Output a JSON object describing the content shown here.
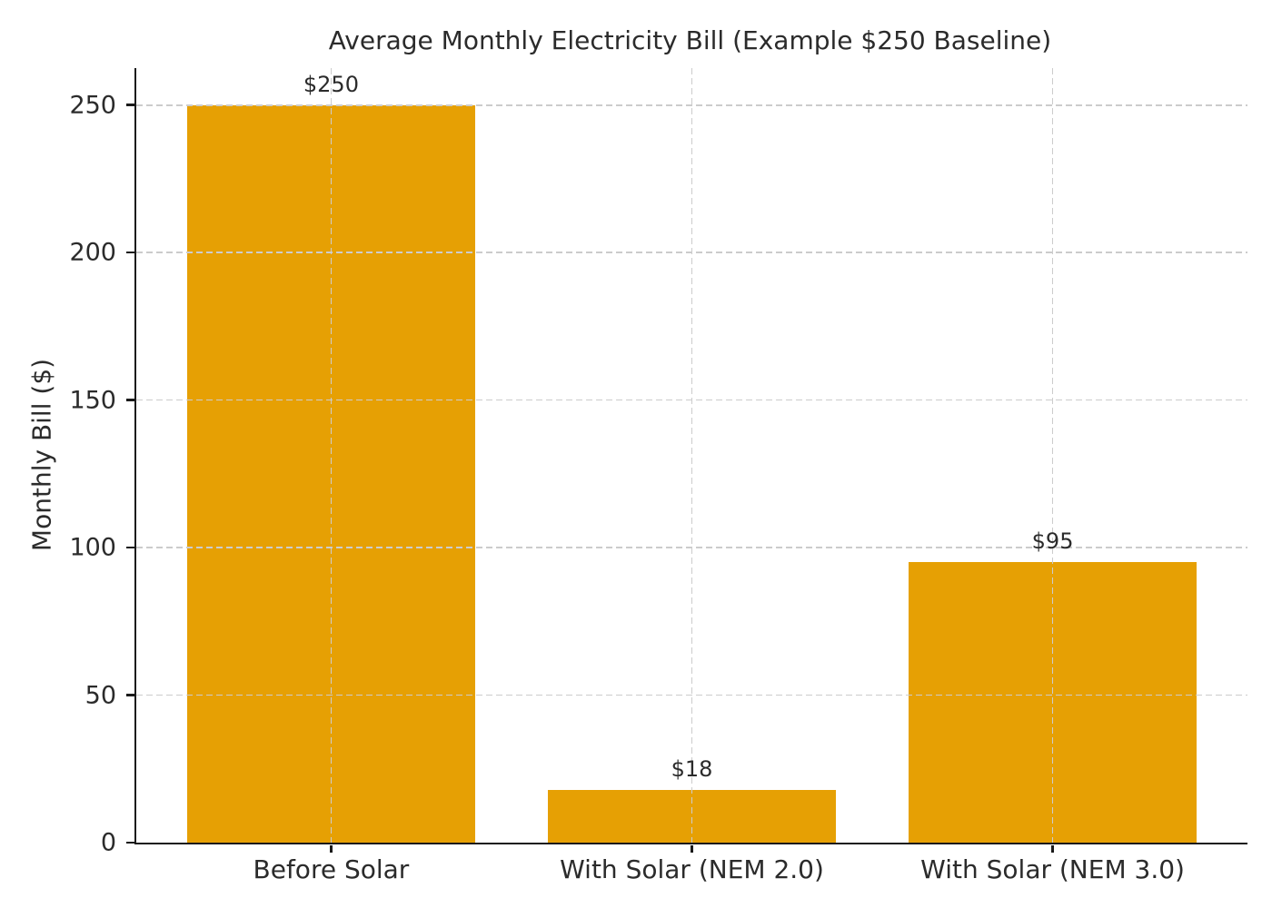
{
  "chart_data": {
    "type": "bar",
    "title": "Average Monthly Electricity Bill (Example $250 Baseline)",
    "xlabel": "",
    "ylabel": "Monthly Bill ($)",
    "categories": [
      "Before Solar",
      "With Solar (NEM 2.0)",
      "With Solar (NEM 3.0)"
    ],
    "values": [
      250,
      18,
      95
    ],
    "bar_labels": [
      "$250",
      "$18",
      "$95"
    ],
    "yticks": [
      0,
      50,
      100,
      150,
      200,
      250
    ],
    "ylim": [
      0,
      262.5
    ],
    "grid": "dashed gridlines on both axes, drawn above bars",
    "legend": "none"
  },
  "style": {
    "bar_color": "#E6A004",
    "grid_color": "#cccccc",
    "spine_color": "#1a1a1a",
    "text_color": "#2b2b2b",
    "background_color": "#ffffff"
  }
}
